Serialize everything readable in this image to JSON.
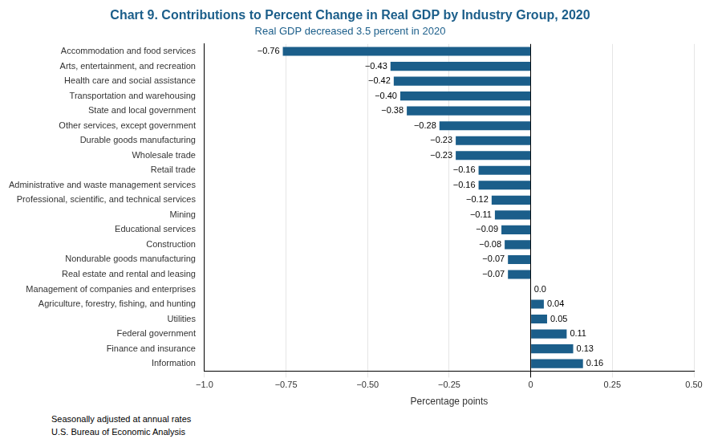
{
  "chart_data": {
    "type": "bar",
    "orientation": "horizontal",
    "title": "Chart 9. Contributions to Percent Change in Real GDP by Industry Group, 2020",
    "subtitle": "Real GDP decreased 3.5 percent in 2020",
    "xlabel": "Percentage points",
    "annotations": [
      "Seasonally adjusted at annual rates",
      "U.S. Bureau of Economic Analysis"
    ],
    "categories": [
      "Information",
      "Finance and insurance",
      "Federal government",
      "Utilities",
      "Agriculture, forestry, fishing, and hunting",
      "Management of companies and enterprises",
      "Real estate and rental and leasing",
      "Nondurable goods manufacturing",
      "Construction",
      "Educational services",
      "Mining",
      "Professional, scientific, and technical services",
      "Administrative and waste management services",
      "Retail trade",
      "Wholesale trade",
      "Durable goods manufacturing",
      "Other services, except government",
      "State and local government",
      "Transportation and warehousing",
      "Health care and social assistance",
      "Arts, entertainment, and recreation",
      "Accommodation and food services"
    ],
    "values": [
      0.16,
      0.13,
      0.11,
      0.05,
      0.04,
      0.0,
      -0.07,
      -0.07,
      -0.08,
      -0.09,
      -0.11,
      -0.12,
      -0.16,
      -0.16,
      -0.23,
      -0.23,
      -0.28,
      -0.38,
      -0.4,
      -0.42,
      -0.43,
      -0.76
    ],
    "value_labels": [
      "0.16",
      "0.13",
      "0.11",
      "0.05",
      "0.04",
      "0.0",
      "−0.07",
      "−0.07",
      "−0.08",
      "−0.09",
      "−0.11",
      "−0.12",
      "−0.16",
      "−0.16",
      "−0.23",
      "−0.23",
      "−0.28",
      "−0.38",
      "−0.40",
      "−0.42",
      "−0.43",
      "−0.76"
    ],
    "data_labels": true,
    "color": "#1B5E8A",
    "xlim": [
      -1.0,
      0.5
    ],
    "xticks": [
      {
        "value": -1.0,
        "label": "−1.0"
      },
      {
        "value": -0.75,
        "label": "−0.75"
      },
      {
        "value": -0.5,
        "label": "−0.50"
      },
      {
        "value": -0.25,
        "label": "−0.25"
      },
      0,
      0.25,
      {
        "value": 0.5,
        "label": "0.50"
      }
    ],
    "grid": true
  }
}
